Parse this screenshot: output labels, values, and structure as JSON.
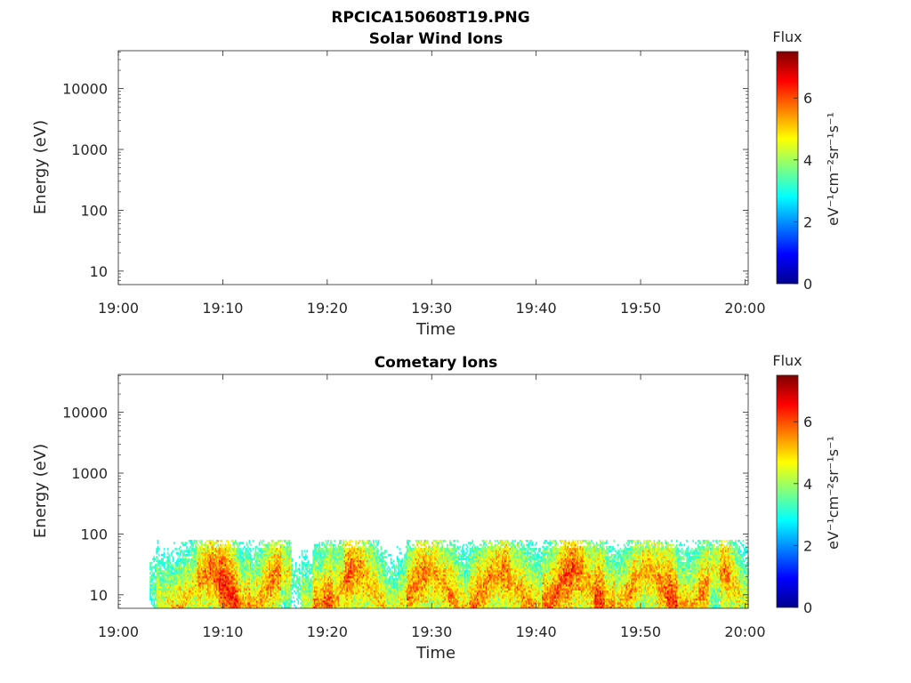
{
  "figure": {
    "filename_title": "RPCICA150608T19.PNG"
  },
  "chart_data": [
    {
      "type": "heatmap",
      "title": "Solar Wind Ions",
      "xlabel": "Time",
      "ylabel": "Energy (eV)",
      "x_tick_labels": [
        "19:00",
        "19:10",
        "19:20",
        "19:30",
        "19:40",
        "19:50",
        "20:00"
      ],
      "x_range_minutes_after_19h": [
        0,
        60.3
      ],
      "y_scale": "log",
      "y_range_eV": [
        6,
        42000
      ],
      "y_ticks": [
        10,
        100,
        1000,
        10000
      ],
      "y_tick_labels": [
        "10",
        "100",
        "1000",
        "10000"
      ],
      "colorbar": {
        "label": "Flux",
        "units": "eV⁻¹cm⁻²sr⁻¹s⁻¹",
        "range": [
          0,
          7.5
        ],
        "tick_labels": [
          "0",
          "2",
          "4",
          "6"
        ],
        "colormap": "jet"
      },
      "data_present": false
    },
    {
      "type": "heatmap",
      "title": "Cometary Ions",
      "xlabel": "Time",
      "ylabel": "Energy (eV)",
      "x_tick_labels": [
        "19:00",
        "19:10",
        "19:20",
        "19:30",
        "19:40",
        "19:50",
        "20:00"
      ],
      "x_range_minutes_after_19h": [
        0,
        60.3
      ],
      "y_scale": "log",
      "y_range_eV": [
        6,
        42000
      ],
      "y_ticks": [
        10,
        100,
        1000,
        10000
      ],
      "y_tick_labels": [
        "10",
        "100",
        "1000",
        "10000"
      ],
      "colorbar": {
        "label": "Flux",
        "units": "eV⁻¹cm⁻²sr⁻¹s⁻¹",
        "range": [
          0,
          7.5
        ],
        "tick_labels": [
          "0",
          "2",
          "4",
          "6"
        ],
        "colormap": "jet"
      },
      "data_present": true,
      "data_energy_range_eV": [
        6,
        80
      ],
      "data_time_range_minutes": [
        3,
        60.3
      ],
      "column_peak_flux": [
        {
          "t": 3.2,
          "flux": 4.2
        },
        {
          "t": 4.0,
          "flux": 5.3
        },
        {
          "t": 5.0,
          "flux": 5.8
        },
        {
          "t": 6.0,
          "flux": 6.0
        },
        {
          "t": 7.0,
          "flux": 5.6
        },
        {
          "t": 8.0,
          "flux": 6.3
        },
        {
          "t": 9.0,
          "flux": 6.6
        },
        {
          "t": 10.0,
          "flux": 7.2
        },
        {
          "t": 11.0,
          "flux": 7.1
        },
        {
          "t": 12.0,
          "flux": 6.4
        },
        {
          "t": 13.0,
          "flux": 6.0
        },
        {
          "t": 14.0,
          "flux": 6.2
        },
        {
          "t": 15.0,
          "flux": 6.4
        },
        {
          "t": 16.0,
          "flux": 5.5
        },
        {
          "t": 17.0,
          "flux": 4.0
        },
        {
          "t": 18.0,
          "flux": 5.0
        },
        {
          "t": 19.0,
          "flux": 6.5
        },
        {
          "t": 20.0,
          "flux": 6.8
        },
        {
          "t": 21.0,
          "flux": 6.0
        },
        {
          "t": 22.0,
          "flux": 6.6
        },
        {
          "t": 23.0,
          "flux": 6.3
        },
        {
          "t": 24.0,
          "flux": 6.0
        },
        {
          "t": 25.0,
          "flux": 5.8
        },
        {
          "t": 26.0,
          "flux": 5.4
        },
        {
          "t": 27.0,
          "flux": 5.6
        },
        {
          "t": 28.0,
          "flux": 6.4
        },
        {
          "t": 29.0,
          "flux": 6.5
        },
        {
          "t": 30.0,
          "flux": 6.2
        },
        {
          "t": 31.0,
          "flux": 6.1
        },
        {
          "t": 32.0,
          "flux": 6.4
        },
        {
          "t": 33.0,
          "flux": 6.0
        },
        {
          "t": 34.0,
          "flux": 6.6
        },
        {
          "t": 35.0,
          "flux": 6.4
        },
        {
          "t": 36.0,
          "flux": 6.2
        },
        {
          "t": 37.0,
          "flux": 6.5
        },
        {
          "t": 38.0,
          "flux": 6.0
        },
        {
          "t": 39.0,
          "flux": 6.3
        },
        {
          "t": 40.0,
          "flux": 6.1
        },
        {
          "t": 41.0,
          "flux": 6.6
        },
        {
          "t": 42.0,
          "flux": 6.7
        },
        {
          "t": 43.0,
          "flux": 6.9
        },
        {
          "t": 44.0,
          "flux": 6.6
        },
        {
          "t": 45.0,
          "flux": 6.2
        },
        {
          "t": 46.0,
          "flux": 7.0
        },
        {
          "t": 47.0,
          "flux": 6.4
        },
        {
          "t": 48.0,
          "flux": 6.0
        },
        {
          "t": 49.0,
          "flux": 6.2
        },
        {
          "t": 50.0,
          "flux": 5.9
        },
        {
          "t": 51.0,
          "flux": 6.1
        },
        {
          "t": 52.0,
          "flux": 6.5
        },
        {
          "t": 53.0,
          "flux": 7.0
        },
        {
          "t": 54.0,
          "flux": 6.2
        },
        {
          "t": 55.0,
          "flux": 6.0
        },
        {
          "t": 56.0,
          "flux": 6.3
        },
        {
          "t": 57.0,
          "flux": 5.5
        },
        {
          "t": 58.0,
          "flux": 6.4
        },
        {
          "t": 59.0,
          "flux": 5.8
        },
        {
          "t": 60.0,
          "flux": 5.4
        }
      ]
    }
  ]
}
